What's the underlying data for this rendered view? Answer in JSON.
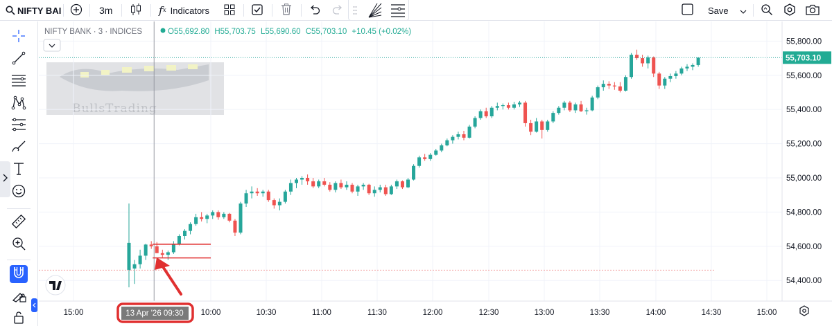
{
  "toolbar": {
    "symbol": "NIFTY BAI",
    "interval": "3m",
    "indicators_label": "Indicators",
    "save_label": "Save"
  },
  "legend": {
    "symbol_line": "NIFTY BANK · 3 · INDICES",
    "open": "O55,692.80",
    "high": "H55,703.75",
    "low": "L55,690.60",
    "close": "C55,703.10",
    "change": "+10.45 (+0.02%)"
  },
  "watermark": {
    "text": "BullsTrading"
  },
  "price_axis": {
    "ticks": [
      "55,800.00",
      "55,600.00",
      "55,400.00",
      "55,200.00",
      "55,000.00",
      "54,800.00",
      "54,600.00",
      "54,400.00"
    ],
    "last_price": "55,703.10"
  },
  "time_axis": {
    "ticks": [
      "15:00",
      "10:00",
      "10:30",
      "11:00",
      "11:30",
      "12:00",
      "12:30",
      "13:00",
      "13:30",
      "14:00",
      "14:30",
      "15:00"
    ],
    "crosshair_label": "13 Apr '26   09:30"
  },
  "colors": {
    "up": "#26a69a",
    "down": "#ef5350",
    "annotation": "#e03030",
    "last_price_bg": "#22ab94",
    "crosshair_label_bg": "#7a7a7a"
  },
  "icons": {
    "toolbar": [
      "search-icon",
      "add-symbol-icon",
      "candles-icon",
      "fx-icon",
      "layouts-icon",
      "checkbox-icon",
      "trash-icon",
      "undo-icon",
      "redo-icon",
      "drag-handle-icon",
      "fan-drawing-icon",
      "lines-drawing-icon",
      "layout-square-icon",
      "chevron-down-icon",
      "quick-search-icon",
      "settings-icon",
      "camera-icon"
    ],
    "left_toolbar": [
      "crosshair-icon",
      "trend-line-icon",
      "horizontal-lines-icon",
      "pattern-icon",
      "fib-icon",
      "brush-icon",
      "text-icon",
      "emoji-icon",
      "ruler-icon",
      "zoom-in-icon",
      "magnet-icon",
      "lock-icon",
      "trash-all-icon"
    ]
  },
  "chart_data": {
    "type": "candlestick",
    "symbol": "NIFTY BANK",
    "interval": "3m",
    "ylim": [
      54320,
      55850
    ],
    "annotation": {
      "label_highlighted": "13 Apr '26   09:30",
      "horizontal_levels": [
        54612,
        54532
      ],
      "arrow_points_to": "09:30 candle"
    },
    "candles": [
      {
        "t": "09:15",
        "o": 54460,
        "h": 54850,
        "l": 54360,
        "c": 54620
      },
      {
        "t": "09:18",
        "o": 54470,
        "h": 54520,
        "l": 54380,
        "c": 54495
      },
      {
        "t": "09:21",
        "o": 54495,
        "h": 54580,
        "l": 54470,
        "c": 54545
      },
      {
        "t": "09:24",
        "o": 54545,
        "h": 54615,
        "l": 54520,
        "c": 54610
      },
      {
        "t": "09:27",
        "o": 54610,
        "h": 54630,
        "l": 54585,
        "c": 54600
      },
      {
        "t": "09:30",
        "o": 54600,
        "h": 54625,
        "l": 54560,
        "c": 54560
      },
      {
        "t": "09:33",
        "o": 54560,
        "h": 54580,
        "l": 54535,
        "c": 54550
      },
      {
        "t": "09:36",
        "o": 54550,
        "h": 54575,
        "l": 54520,
        "c": 54565
      },
      {
        "t": "09:39",
        "o": 54565,
        "h": 54630,
        "l": 54555,
        "c": 54615
      },
      {
        "t": "09:42",
        "o": 54615,
        "h": 54670,
        "l": 54605,
        "c": 54660
      },
      {
        "t": "09:45",
        "o": 54660,
        "h": 54700,
        "l": 54640,
        "c": 54690
      },
      {
        "t": "09:48",
        "o": 54690,
        "h": 54740,
        "l": 54670,
        "c": 54730
      },
      {
        "t": "09:51",
        "o": 54730,
        "h": 54790,
        "l": 54720,
        "c": 54770
      },
      {
        "t": "09:54",
        "o": 54770,
        "h": 54800,
        "l": 54745,
        "c": 54760
      },
      {
        "t": "09:57",
        "o": 54760,
        "h": 54790,
        "l": 54735,
        "c": 54780
      },
      {
        "t": "10:00",
        "o": 54780,
        "h": 54810,
        "l": 54760,
        "c": 54800
      },
      {
        "t": "10:03",
        "o": 54800,
        "h": 54810,
        "l": 54755,
        "c": 54770
      },
      {
        "t": "10:06",
        "o": 54770,
        "h": 54800,
        "l": 54760,
        "c": 54790
      },
      {
        "t": "10:09",
        "o": 54790,
        "h": 54795,
        "l": 54740,
        "c": 54750
      },
      {
        "t": "10:12",
        "o": 54750,
        "h": 54760,
        "l": 54660,
        "c": 54680
      },
      {
        "t": "10:15",
        "o": 54680,
        "h": 54860,
        "l": 54670,
        "c": 54850
      },
      {
        "t": "10:18",
        "o": 54850,
        "h": 54930,
        "l": 54830,
        "c": 54910
      },
      {
        "t": "10:21",
        "o": 54910,
        "h": 54950,
        "l": 54880,
        "c": 54920
      },
      {
        "t": "10:24",
        "o": 54920,
        "h": 54940,
        "l": 54895,
        "c": 54910
      },
      {
        "t": "10:27",
        "o": 54910,
        "h": 54930,
        "l": 54890,
        "c": 54920
      },
      {
        "t": "10:30",
        "o": 54920,
        "h": 54930,
        "l": 54860,
        "c": 54870
      },
      {
        "t": "10:33",
        "o": 54870,
        "h": 54880,
        "l": 54820,
        "c": 54840
      },
      {
        "t": "10:36",
        "o": 54840,
        "h": 54880,
        "l": 54810,
        "c": 54860
      },
      {
        "t": "10:39",
        "o": 54860,
        "h": 54930,
        "l": 54850,
        "c": 54920
      },
      {
        "t": "10:42",
        "o": 54920,
        "h": 54990,
        "l": 54900,
        "c": 54970
      },
      {
        "t": "10:45",
        "o": 54970,
        "h": 55000,
        "l": 54940,
        "c": 54990
      },
      {
        "t": "10:48",
        "o": 54990,
        "h": 55010,
        "l": 54960,
        "c": 55000
      },
      {
        "t": "10:51",
        "o": 55000,
        "h": 55020,
        "l": 54960,
        "c": 54980
      },
      {
        "t": "10:54",
        "o": 54980,
        "h": 55000,
        "l": 54940,
        "c": 54950
      },
      {
        "t": "10:57",
        "o": 54950,
        "h": 54990,
        "l": 54940,
        "c": 54980
      },
      {
        "t": "11:00",
        "o": 54980,
        "h": 55000,
        "l": 54950,
        "c": 54960
      },
      {
        "t": "11:03",
        "o": 54960,
        "h": 54975,
        "l": 54920,
        "c": 54930
      },
      {
        "t": "11:06",
        "o": 54930,
        "h": 54980,
        "l": 54915,
        "c": 54970
      },
      {
        "t": "11:09",
        "o": 54970,
        "h": 54990,
        "l": 54935,
        "c": 54945
      },
      {
        "t": "11:12",
        "o": 54945,
        "h": 54980,
        "l": 54930,
        "c": 54960
      },
      {
        "t": "11:15",
        "o": 54960,
        "h": 54970,
        "l": 54910,
        "c": 54920
      },
      {
        "t": "11:18",
        "o": 54920,
        "h": 54960,
        "l": 54895,
        "c": 54950
      },
      {
        "t": "11:21",
        "o": 54950,
        "h": 54970,
        "l": 54930,
        "c": 54960
      },
      {
        "t": "11:24",
        "o": 54960,
        "h": 54965,
        "l": 54900,
        "c": 54910
      },
      {
        "t": "11:27",
        "o": 54910,
        "h": 54950,
        "l": 54890,
        "c": 54930
      },
      {
        "t": "11:30",
        "o": 54930,
        "h": 54960,
        "l": 54915,
        "c": 54945
      },
      {
        "t": "11:33",
        "o": 54945,
        "h": 54960,
        "l": 54895,
        "c": 54905
      },
      {
        "t": "11:36",
        "o": 54905,
        "h": 54960,
        "l": 54900,
        "c": 54950
      },
      {
        "t": "11:39",
        "o": 54950,
        "h": 54990,
        "l": 54935,
        "c": 54980
      },
      {
        "t": "11:42",
        "o": 54980,
        "h": 54985,
        "l": 54935,
        "c": 54945
      },
      {
        "t": "11:45",
        "o": 54945,
        "h": 55000,
        "l": 54940,
        "c": 54990
      },
      {
        "t": "11:48",
        "o": 54990,
        "h": 55080,
        "l": 54985,
        "c": 55070
      },
      {
        "t": "11:51",
        "o": 55070,
        "h": 55130,
        "l": 55060,
        "c": 55120
      },
      {
        "t": "11:54",
        "o": 55120,
        "h": 55140,
        "l": 55100,
        "c": 55110
      },
      {
        "t": "11:57",
        "o": 55110,
        "h": 55145,
        "l": 55100,
        "c": 55135
      },
      {
        "t": "12:00",
        "o": 55135,
        "h": 55170,
        "l": 55130,
        "c": 55160
      },
      {
        "t": "12:03",
        "o": 55160,
        "h": 55200,
        "l": 55150,
        "c": 55190
      },
      {
        "t": "12:06",
        "o": 55190,
        "h": 55230,
        "l": 55185,
        "c": 55220
      },
      {
        "t": "12:09",
        "o": 55220,
        "h": 55250,
        "l": 55200,
        "c": 55240
      },
      {
        "t": "12:12",
        "o": 55240,
        "h": 55270,
        "l": 55225,
        "c": 55255
      },
      {
        "t": "12:15",
        "o": 55255,
        "h": 55275,
        "l": 55220,
        "c": 55235
      },
      {
        "t": "12:18",
        "o": 55235,
        "h": 55310,
        "l": 55230,
        "c": 55300
      },
      {
        "t": "12:21",
        "o": 55300,
        "h": 55360,
        "l": 55290,
        "c": 55350
      },
      {
        "t": "12:24",
        "o": 55350,
        "h": 55400,
        "l": 55340,
        "c": 55390
      },
      {
        "t": "12:27",
        "o": 55390,
        "h": 55410,
        "l": 55350,
        "c": 55360
      },
      {
        "t": "12:30",
        "o": 55360,
        "h": 55420,
        "l": 55350,
        "c": 55410
      },
      {
        "t": "12:33",
        "o": 55410,
        "h": 55440,
        "l": 55395,
        "c": 55420
      },
      {
        "t": "12:36",
        "o": 55420,
        "h": 55435,
        "l": 55400,
        "c": 55425
      },
      {
        "t": "12:39",
        "o": 55425,
        "h": 55440,
        "l": 55400,
        "c": 55410
      },
      {
        "t": "12:42",
        "o": 55410,
        "h": 55445,
        "l": 55400,
        "c": 55430
      },
      {
        "t": "12:45",
        "o": 55430,
        "h": 55450,
        "l": 55415,
        "c": 55440
      },
      {
        "t": "12:48",
        "o": 55440,
        "h": 55450,
        "l": 55300,
        "c": 55320
      },
      {
        "t": "12:51",
        "o": 55320,
        "h": 55340,
        "l": 55250,
        "c": 55270
      },
      {
        "t": "12:54",
        "o": 55270,
        "h": 55350,
        "l": 55265,
        "c": 55330
      },
      {
        "t": "12:57",
        "o": 55330,
        "h": 55340,
        "l": 55230,
        "c": 55280
      },
      {
        "t": "13:00",
        "o": 55280,
        "h": 55340,
        "l": 55270,
        "c": 55330
      },
      {
        "t": "13:03",
        "o": 55330,
        "h": 55390,
        "l": 55320,
        "c": 55380
      },
      {
        "t": "13:06",
        "o": 55380,
        "h": 55420,
        "l": 55370,
        "c": 55410
      },
      {
        "t": "13:09",
        "o": 55410,
        "h": 55450,
        "l": 55395,
        "c": 55440
      },
      {
        "t": "13:12",
        "o": 55440,
        "h": 55450,
        "l": 55385,
        "c": 55395
      },
      {
        "t": "13:15",
        "o": 55395,
        "h": 55440,
        "l": 55380,
        "c": 55430
      },
      {
        "t": "13:18",
        "o": 55430,
        "h": 55450,
        "l": 55385,
        "c": 55390
      },
      {
        "t": "13:21",
        "o": 55390,
        "h": 55410,
        "l": 55370,
        "c": 55395
      },
      {
        "t": "13:24",
        "o": 55395,
        "h": 55480,
        "l": 55390,
        "c": 55470
      },
      {
        "t": "13:27",
        "o": 55470,
        "h": 55540,
        "l": 55460,
        "c": 55530
      },
      {
        "t": "13:30",
        "o": 55530,
        "h": 55570,
        "l": 55510,
        "c": 55550
      },
      {
        "t": "13:33",
        "o": 55550,
        "h": 55565,
        "l": 55520,
        "c": 55540
      },
      {
        "t": "13:36",
        "o": 55540,
        "h": 55560,
        "l": 55515,
        "c": 55535
      },
      {
        "t": "13:39",
        "o": 55535,
        "h": 55560,
        "l": 55500,
        "c": 55510
      },
      {
        "t": "13:42",
        "o": 55510,
        "h": 55600,
        "l": 55505,
        "c": 55590
      },
      {
        "t": "13:45",
        "o": 55590,
        "h": 55730,
        "l": 55580,
        "c": 55720
      },
      {
        "t": "13:48",
        "o": 55720,
        "h": 55750,
        "l": 55690,
        "c": 55700
      },
      {
        "t": "13:51",
        "o": 55700,
        "h": 55720,
        "l": 55650,
        "c": 55670
      },
      {
        "t": "13:54",
        "o": 55670,
        "h": 55715,
        "l": 55640,
        "c": 55705
      },
      {
        "t": "13:57",
        "o": 55705,
        "h": 55710,
        "l": 55590,
        "c": 55610
      },
      {
        "t": "14:00",
        "o": 55610,
        "h": 55620,
        "l": 55520,
        "c": 55540
      },
      {
        "t": "14:03",
        "o": 55540,
        "h": 55590,
        "l": 55520,
        "c": 55580
      },
      {
        "t": "14:06",
        "o": 55580,
        "h": 55610,
        "l": 55560,
        "c": 55595
      },
      {
        "t": "14:09",
        "o": 55595,
        "h": 55625,
        "l": 55580,
        "c": 55610
      },
      {
        "t": "14:12",
        "o": 55610,
        "h": 55650,
        "l": 55600,
        "c": 55640
      },
      {
        "t": "14:15",
        "o": 55640,
        "h": 55665,
        "l": 55625,
        "c": 55650
      },
      {
        "t": "14:18",
        "o": 55650,
        "h": 55670,
        "l": 55630,
        "c": 55660
      },
      {
        "t": "14:21",
        "o": 55660,
        "h": 55705,
        "l": 55650,
        "c": 55703
      }
    ]
  }
}
